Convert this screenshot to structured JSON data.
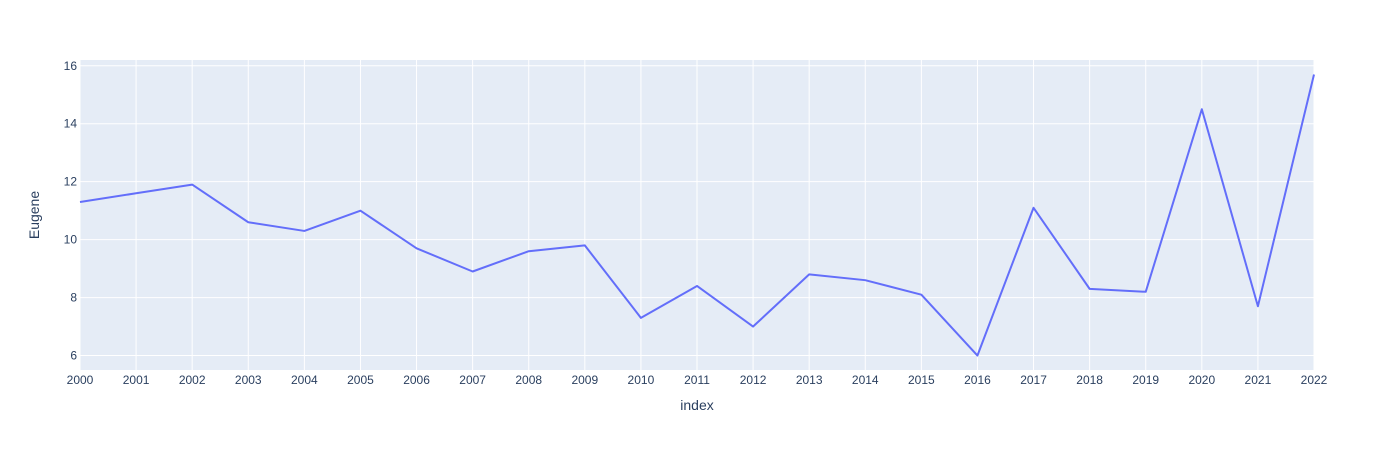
{
  "chart_data": {
    "type": "line",
    "x": [
      "2000",
      "2001",
      "2002",
      "2003",
      "2004",
      "2005",
      "2006",
      "2007",
      "2008",
      "2009",
      "2010",
      "2011",
      "2012",
      "2013",
      "2014",
      "2015",
      "2016",
      "2017",
      "2018",
      "2019",
      "2020",
      "2021",
      "2022"
    ],
    "series": [
      {
        "name": "",
        "values": [
          11.3,
          11.6,
          11.9,
          10.6,
          10.3,
          11.0,
          9.7,
          8.9,
          9.6,
          9.8,
          7.3,
          8.4,
          7.0,
          8.8,
          8.6,
          8.1,
          6.0,
          11.1,
          8.3,
          8.2,
          14.5,
          7.7,
          15.7
        ]
      }
    ],
    "xlabel": "index",
    "ylabel": "Eugene",
    "ylim": [
      5.5,
      16.2
    ],
    "yticks": [
      "6",
      "8",
      "10",
      "12",
      "14",
      "16"
    ],
    "grid": true,
    "colors": {
      "line": "#636efa",
      "plot_bg": "#e5ecf6",
      "grid": "#ffffff",
      "text": "#2a3f5f"
    }
  }
}
